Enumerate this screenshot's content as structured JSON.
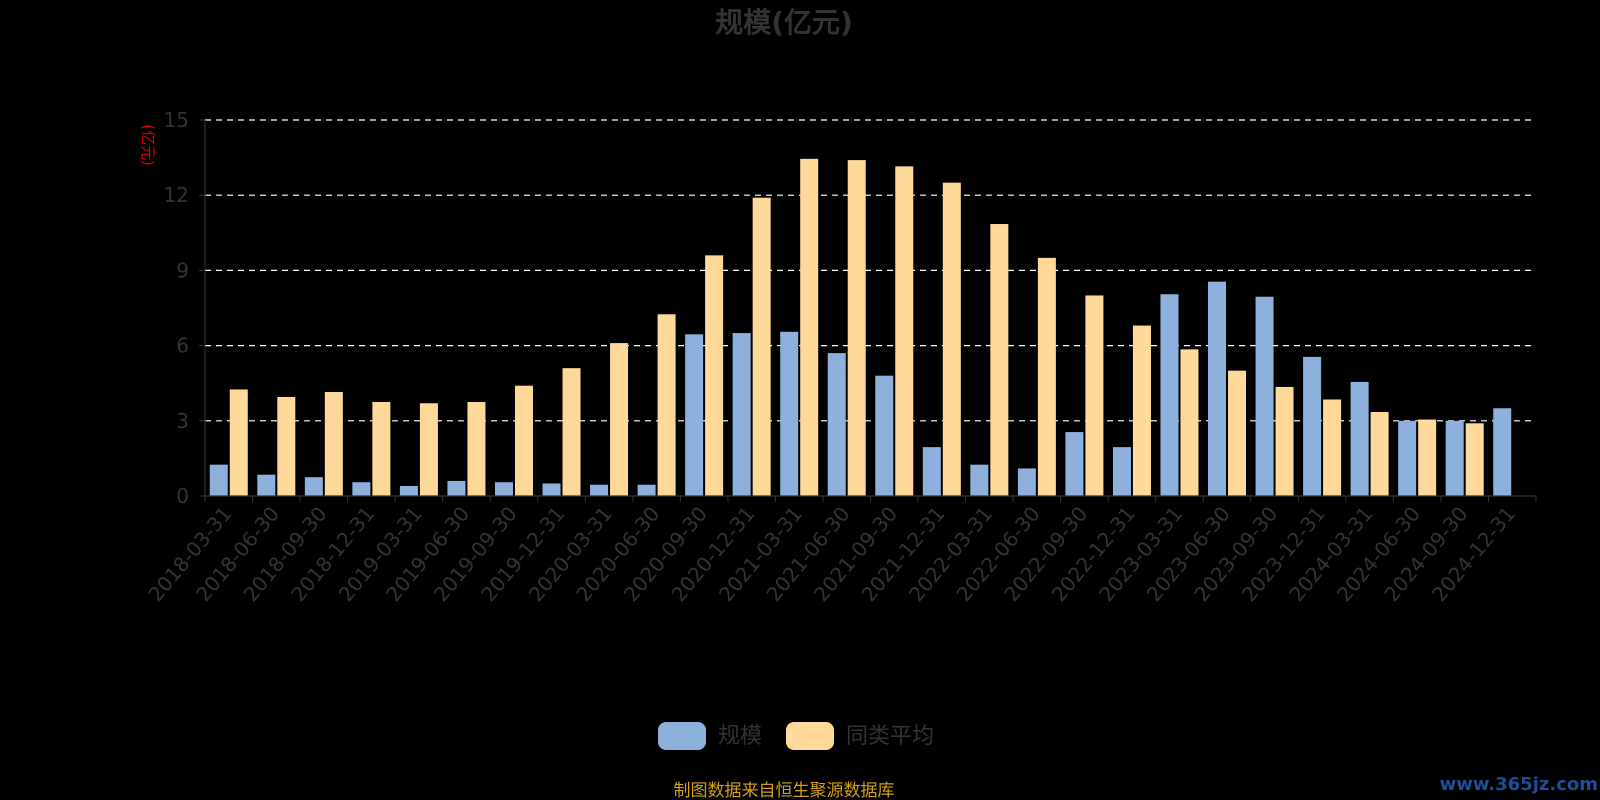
{
  "chart_data": {
    "type": "bar",
    "title": "规模(亿元)",
    "ylabel": "(亿元)",
    "ylim": [
      0,
      15
    ],
    "yticks": [
      "0",
      "3",
      "6",
      "9",
      "12",
      "15"
    ],
    "grid": true,
    "legend_position": "bottom",
    "categories": [
      "2018-03-31",
      "2018-06-30",
      "2018-09-30",
      "2018-12-31",
      "2019-03-31",
      "2019-06-30",
      "2019-09-30",
      "2019-12-31",
      "2020-03-31",
      "2020-06-30",
      "2020-09-30",
      "2020-12-31",
      "2021-03-31",
      "2021-06-30",
      "2021-09-30",
      "2021-12-31",
      "2022-03-31",
      "2022-06-30",
      "2022-09-30",
      "2022-12-31",
      "2023-03-31",
      "2023-06-30",
      "2023-09-30",
      "2023-12-31",
      "2024-03-31",
      "2024-06-30",
      "2024-09-30",
      "2024-12-31"
    ],
    "series": [
      {
        "name": "规模",
        "color": "#8eb0dc",
        "values": [
          1.25,
          0.85,
          0.75,
          0.55,
          0.4,
          0.6,
          0.55,
          0.5,
          0.45,
          0.45,
          6.45,
          6.5,
          6.55,
          5.7,
          4.8,
          1.95,
          1.25,
          1.1,
          2.55,
          1.95,
          8.05,
          8.55,
          7.95,
          5.55,
          4.55,
          3.0,
          3.0,
          3.5
        ]
      },
      {
        "name": "同类平均",
        "color": "#ffd99a",
        "values": [
          4.25,
          3.95,
          4.15,
          3.75,
          3.7,
          3.75,
          4.4,
          5.1,
          6.1,
          7.25,
          9.6,
          11.9,
          13.45,
          13.4,
          13.15,
          12.5,
          10.85,
          9.5,
          8.0,
          6.8,
          5.85,
          5.0,
          4.35,
          3.85,
          3.35,
          3.05,
          2.9,
          null
        ]
      }
    ]
  },
  "footer": {
    "source": "制图数据来自恒生聚源数据库",
    "watermark": "www.365jz.com"
  }
}
